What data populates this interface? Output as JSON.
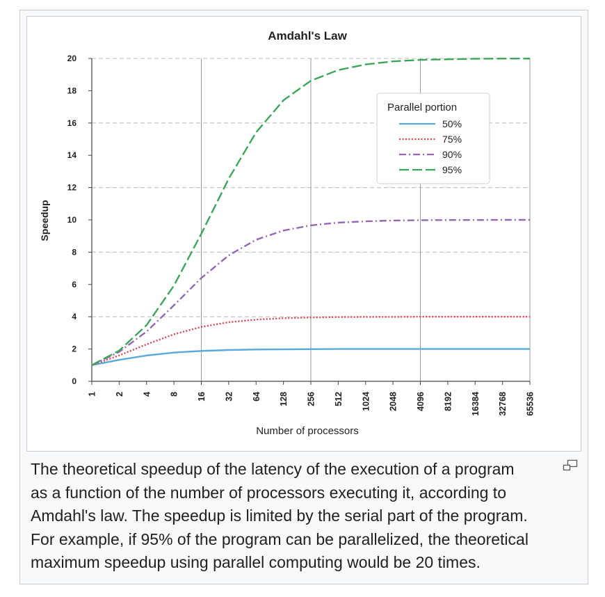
{
  "chart_data": {
    "type": "line",
    "title": "Amdahl's Law",
    "xlabel": "Number of processors",
    "ylabel": "Speedup",
    "x_scale": "log2",
    "x": [
      1,
      2,
      4,
      8,
      16,
      32,
      64,
      128,
      256,
      512,
      1024,
      2048,
      4096,
      8192,
      16384,
      32768,
      65536
    ],
    "x_tick_labels": [
      "1",
      "2",
      "4",
      "8",
      "16",
      "32",
      "64",
      "128",
      "256",
      "512",
      "1024",
      "2048",
      "4096",
      "8192",
      "16384",
      "32768",
      "65536"
    ],
    "y_ticks": [
      "0",
      "2",
      "4",
      "6",
      "8",
      "10",
      "12",
      "14",
      "16",
      "18",
      "20"
    ],
    "ylim": [
      0,
      20
    ],
    "legend": {
      "title": "Parallel portion",
      "position": "top-right"
    },
    "series": [
      {
        "name": "50%",
        "color": "#5aa9dc",
        "style": "solid",
        "values": [
          1.0,
          1.33,
          1.6,
          1.78,
          1.88,
          1.94,
          1.97,
          1.98,
          1.99,
          2.0,
          2.0,
          2.0,
          2.0,
          2.0,
          2.0,
          2.0,
          2.0
        ]
      },
      {
        "name": "75%",
        "color": "#d9434a",
        "style": "dotted",
        "values": [
          1.0,
          1.6,
          2.29,
          2.91,
          3.37,
          3.66,
          3.82,
          3.91,
          3.95,
          3.98,
          3.99,
          3.99,
          4.0,
          4.0,
          4.0,
          4.0,
          4.0
        ]
      },
      {
        "name": "90%",
        "color": "#9467b5",
        "style": "dashdot",
        "values": [
          1.0,
          1.82,
          3.08,
          4.71,
          6.4,
          7.8,
          8.77,
          9.34,
          9.66,
          9.83,
          9.91,
          9.96,
          9.98,
          9.99,
          9.99,
          10.0,
          10.0
        ]
      },
      {
        "name": "95%",
        "color": "#3da55a",
        "style": "dashed",
        "values": [
          1.0,
          1.9,
          3.48,
          5.93,
          9.14,
          12.55,
          15.42,
          17.41,
          18.62,
          19.28,
          19.63,
          19.82,
          19.91,
          19.95,
          19.98,
          19.99,
          19.99
        ]
      }
    ]
  },
  "caption": {
    "lines": [
      "The theoretical speedup of the latency of the execution of a program",
      "as a function of the number of processors executing it, according to",
      "Amdahl's law. The speedup is limited by the serial part of the program.",
      "For example, if 95% of the program can be parallelized, the theoretical",
      "maximum speedup using parallel computing would be 20 times."
    ],
    "magnify_icon": "magnify-icon"
  }
}
